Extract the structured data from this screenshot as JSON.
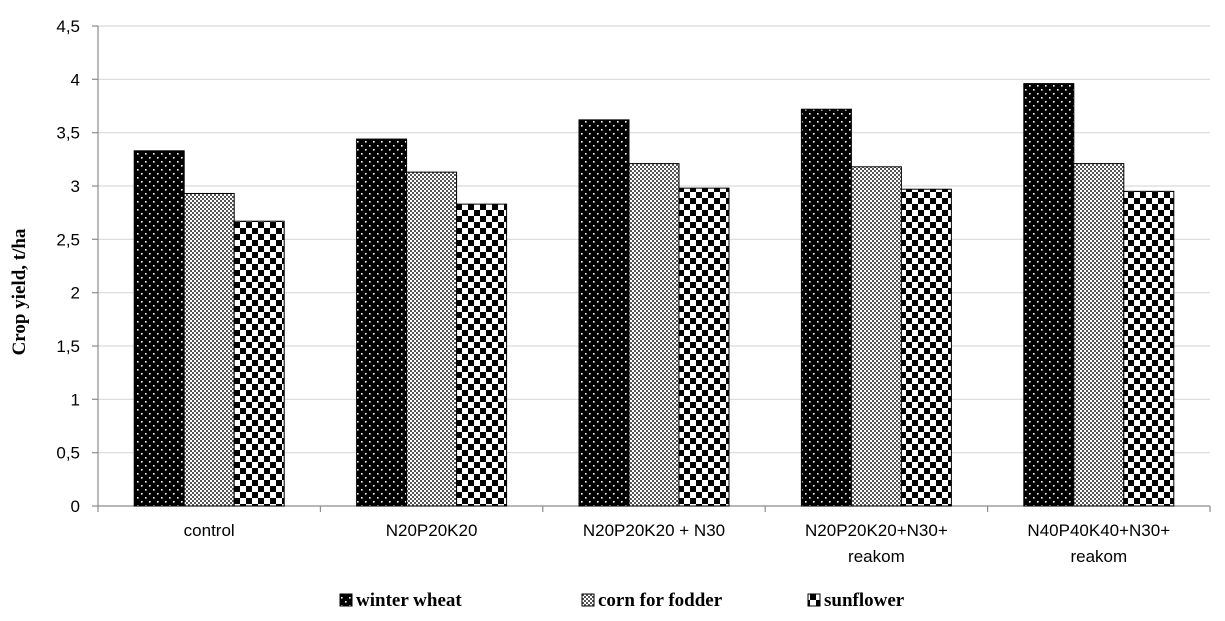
{
  "chart_data": {
    "type": "bar",
    "categories": [
      [
        "control"
      ],
      [
        "N20P20K20"
      ],
      [
        "N20P20K20 + N30"
      ],
      [
        "N20P20K20+N30+",
        "reakom"
      ],
      [
        "N40P40K40+N30+",
        "reakom"
      ]
    ],
    "series": [
      {
        "name": "winter wheat",
        "values": [
          3.33,
          3.44,
          3.62,
          3.72,
          3.96
        ],
        "pattern": "dots-on-black"
      },
      {
        "name": "corn for fodder",
        "values": [
          2.93,
          3.13,
          3.21,
          3.18,
          3.21
        ],
        "pattern": "fine-check"
      },
      {
        "name": "sunflower",
        "values": [
          2.67,
          2.83,
          2.98,
          2.97,
          2.95
        ],
        "pattern": "large-check"
      }
    ],
    "ylabel": "Crop yield, t/ha",
    "xlabel": "",
    "ylim": [
      0,
      4.5
    ],
    "yticks": [
      "0",
      "0,5",
      "1",
      "1,5",
      "2",
      "2,5",
      "3",
      "3,5",
      "4",
      "4,5"
    ],
    "ytick_values": [
      0,
      0.5,
      1,
      1.5,
      2,
      2.5,
      3,
      3.5,
      4,
      4.5
    ],
    "grid": true,
    "legend_position": "bottom",
    "colors": {
      "gridline": "#d9d9d9",
      "axis": "#8c8c8c",
      "bar_dark": "#000000",
      "bar_light": "#ffffff"
    }
  }
}
